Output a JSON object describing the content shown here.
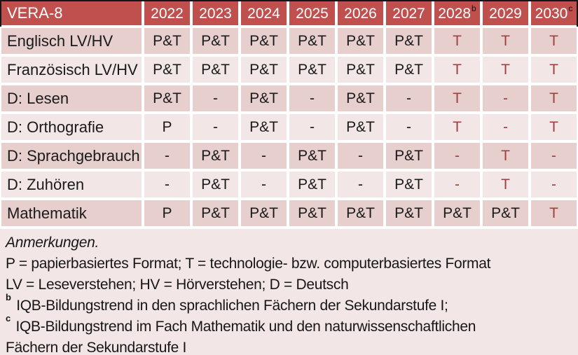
{
  "table": {
    "header": {
      "label": "VERA-8",
      "years": [
        {
          "text": "2022",
          "sup": ""
        },
        {
          "text": "2023",
          "sup": ""
        },
        {
          "text": "2024",
          "sup": ""
        },
        {
          "text": "2025",
          "sup": ""
        },
        {
          "text": "2026",
          "sup": ""
        },
        {
          "text": "2027",
          "sup": ""
        },
        {
          "text": "2028",
          "sup": "b"
        },
        {
          "text": "2029",
          "sup": ""
        },
        {
          "text": "2030",
          "sup": "c"
        }
      ]
    },
    "rows": [
      {
        "label": "Englisch LV/HV",
        "cells": [
          {
            "t": "P&T",
            "red": false
          },
          {
            "t": "P&T",
            "red": false
          },
          {
            "t": "P&T",
            "red": false
          },
          {
            "t": "P&T",
            "red": false
          },
          {
            "t": "P&T",
            "red": false
          },
          {
            "t": "P&T",
            "red": false
          },
          {
            "t": "T",
            "red": true
          },
          {
            "t": "T",
            "red": true
          },
          {
            "t": "T",
            "red": true
          }
        ]
      },
      {
        "label": "Französisch LV/HV",
        "cells": [
          {
            "t": "P&T",
            "red": false
          },
          {
            "t": "P&T",
            "red": false
          },
          {
            "t": "P&T",
            "red": false
          },
          {
            "t": "P&T",
            "red": false
          },
          {
            "t": "P&T",
            "red": false
          },
          {
            "t": "P&T",
            "red": false
          },
          {
            "t": "T",
            "red": true
          },
          {
            "t": "T",
            "red": true
          },
          {
            "t": "T",
            "red": true
          }
        ]
      },
      {
        "label": "D: Lesen",
        "cells": [
          {
            "t": "P&T",
            "red": false
          },
          {
            "t": "-",
            "red": false
          },
          {
            "t": "P&T",
            "red": false
          },
          {
            "t": "-",
            "red": false
          },
          {
            "t": "P&T",
            "red": false
          },
          {
            "t": "-",
            "red": false
          },
          {
            "t": "T",
            "red": true
          },
          {
            "t": "-",
            "red": true
          },
          {
            "t": "T",
            "red": true
          }
        ]
      },
      {
        "label": "D: Orthografie",
        "cells": [
          {
            "t": "P",
            "red": false
          },
          {
            "t": "-",
            "red": false
          },
          {
            "t": "P&T",
            "red": false
          },
          {
            "t": "-",
            "red": false
          },
          {
            "t": "P&T",
            "red": false
          },
          {
            "t": "-",
            "red": false
          },
          {
            "t": "T",
            "red": true
          },
          {
            "t": "-",
            "red": true
          },
          {
            "t": "T",
            "red": true
          }
        ]
      },
      {
        "label": "D: Sprachgebrauch",
        "cells": [
          {
            "t": "-",
            "red": false
          },
          {
            "t": "P&T",
            "red": false
          },
          {
            "t": "-",
            "red": false
          },
          {
            "t": "P&T",
            "red": false
          },
          {
            "t": "-",
            "red": false
          },
          {
            "t": "P&T",
            "red": false
          },
          {
            "t": "-",
            "red": true
          },
          {
            "t": "T",
            "red": true
          },
          {
            "t": "-",
            "red": true
          }
        ]
      },
      {
        "label": "D: Zuhören",
        "cells": [
          {
            "t": "-",
            "red": false
          },
          {
            "t": "P&T",
            "red": false
          },
          {
            "t": "-",
            "red": false
          },
          {
            "t": "P&T",
            "red": false
          },
          {
            "t": "-",
            "red": false
          },
          {
            "t": "P&T",
            "red": false
          },
          {
            "t": "-",
            "red": true
          },
          {
            "t": "T",
            "red": true
          },
          {
            "t": "-",
            "red": true
          }
        ]
      },
      {
        "label": "Mathematik",
        "cells": [
          {
            "t": "P",
            "red": false
          },
          {
            "t": "P&T",
            "red": false
          },
          {
            "t": "P&T",
            "red": false
          },
          {
            "t": "P&T",
            "red": false
          },
          {
            "t": "P&T",
            "red": false
          },
          {
            "t": "P&T",
            "red": false
          },
          {
            "t": "P&T",
            "red": false
          },
          {
            "t": "P&T",
            "red": false
          },
          {
            "t": "T",
            "red": true
          }
        ]
      }
    ]
  },
  "notes": {
    "title": "Anmerkungen.",
    "lines": [
      {
        "sup": "",
        "text": "P = papierbasiertes Format; T = technologie- bzw. computerbasiertes Format"
      },
      {
        "sup": "",
        "text": "LV = Leseverstehen; HV = Hörverstehen; D = Deutsch"
      },
      {
        "sup": "b",
        "text": "IQB-Bildungstrend in den sprachlichen Fächern der Sekundarstufe I;"
      },
      {
        "sup": "c",
        "text": "IQB-Bildungstrend im Fach Mathematik und den naturwissenschaftlichen Fächern der Sekundarstufe I"
      }
    ]
  },
  "colors": {
    "header_bg": "#c0504d",
    "header_text": "#ffffff",
    "band_dark": "#e7cfce",
    "band_light": "#f2e7e6",
    "accent_red": "#a0403e",
    "frame_line": "#151515"
  }
}
